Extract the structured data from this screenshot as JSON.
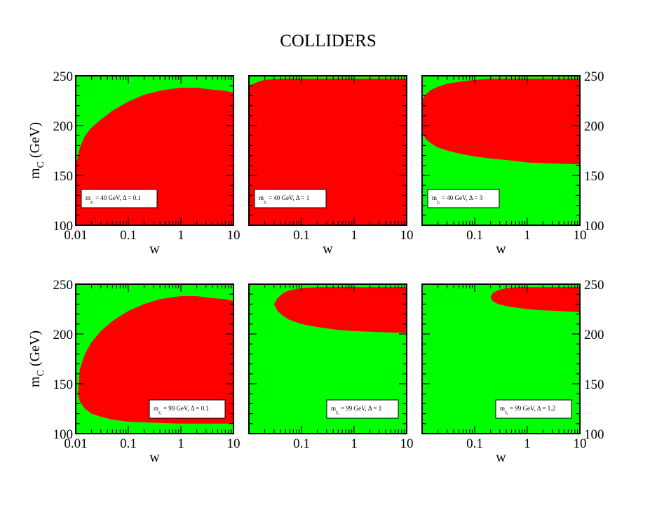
{
  "title": "COLLIDERS",
  "colors": {
    "allowed": "#00ff00",
    "excluded": "#ff0000",
    "frame": "#000000"
  },
  "chart_data": {
    "type": "heatmap",
    "title": "COLLIDERS",
    "xlabel": "w",
    "ylabel": "m_C (GeV)",
    "xscale": "log",
    "xlim": [
      0.01,
      10
    ],
    "ylim": [
      100,
      250
    ],
    "x_ticks": [
      0.01,
      0.1,
      1,
      10
    ],
    "y_ticks": [
      100,
      150,
      200,
      250
    ],
    "regions": {
      "green": "allowed",
      "red": "excluded"
    },
    "panels": [
      {
        "row": 1,
        "col": 1,
        "legend": {
          "m_label": "m",
          "sub": "χ",
          "subsub": "1",
          "value": " = 40 GeV,  Δ = 0.1"
        },
        "x_tick_labels": [
          "0.01",
          "0.1",
          "1",
          "10"
        ],
        "y_tick_labels": [
          "100",
          "150",
          "200",
          "250"
        ],
        "show_xlabel": true,
        "show_ylabel": true,
        "y_axis_side": "left",
        "legend_pos": "mid-left",
        "red_region": {
          "top": [
            [
              0.01,
              160
            ],
            [
              0.012,
              178
            ],
            [
              0.015,
              190
            ],
            [
              0.02,
              198
            ],
            [
              0.03,
              206
            ],
            [
              0.05,
              215
            ],
            [
              0.1,
              224
            ],
            [
              0.2,
              231
            ],
            [
              0.4,
              235
            ],
            [
              0.7,
              237
            ],
            [
              1,
              238
            ],
            [
              2,
              238
            ],
            [
              4,
              236
            ],
            [
              7,
              235
            ],
            [
              10,
              233
            ]
          ],
          "bottom": [
            [
              0.01,
              100
            ],
            [
              10,
              100
            ]
          ]
        }
      },
      {
        "row": 1,
        "col": 2,
        "legend": {
          "m_label": "m",
          "sub": "χ",
          "subsub": "1",
          "value": " = 40 GeV,  Δ = 1"
        },
        "x_tick_labels": [
          "",
          "0.1",
          "1",
          "10"
        ],
        "y_tick_labels": [],
        "show_xlabel": true,
        "show_ylabel": false,
        "y_axis_side": "none",
        "legend_pos": "mid-left",
        "red_region": {
          "top": [
            [
              0.01,
              240
            ],
            [
              0.015,
              244
            ],
            [
              0.02,
              246
            ],
            [
              0.05,
              247
            ],
            [
              0.2,
              247
            ],
            [
              1,
              247
            ],
            [
              10,
              247
            ]
          ],
          "bottom": [
            [
              0.01,
              100
            ],
            [
              10,
              100
            ]
          ]
        }
      },
      {
        "row": 1,
        "col": 3,
        "legend": {
          "m_label": "m",
          "sub": "χ",
          "subsub": "1",
          "value": " = 40 GeV,  Δ = 3"
        },
        "x_tick_labels": [
          "",
          "0.1",
          "1",
          "10"
        ],
        "y_tick_labels": [
          "100",
          "150",
          "200",
          "250"
        ],
        "show_xlabel": true,
        "show_ylabel": false,
        "y_axis_side": "right",
        "legend_pos": "mid-left",
        "red_region": {
          "top": [
            [
              0.01,
              226
            ],
            [
              0.012,
              232
            ],
            [
              0.015,
              236
            ],
            [
              0.02,
              239
            ],
            [
              0.03,
              242
            ],
            [
              0.05,
              244
            ],
            [
              0.1,
              246
            ],
            [
              0.2,
              247
            ],
            [
              1,
              247
            ],
            [
              10,
              247
            ]
          ],
          "bottom": [
            [
              0.01,
              193
            ],
            [
              0.012,
              186
            ],
            [
              0.015,
              182
            ],
            [
              0.02,
              178
            ],
            [
              0.03,
              175
            ],
            [
              0.05,
              172
            ],
            [
              0.1,
              169
            ],
            [
              0.2,
              167
            ],
            [
              0.5,
              165
            ],
            [
              1,
              163
            ],
            [
              3,
              162
            ],
            [
              10,
              161
            ]
          ]
        }
      },
      {
        "row": 2,
        "col": 1,
        "legend": {
          "m_label": "m",
          "sub": "χ",
          "subsub": "1",
          "value": " = 99 GeV,  Δ = 0.1"
        },
        "x_tick_labels": [
          "0.01",
          "0.1",
          "1",
          "10"
        ],
        "y_tick_labels": [
          "100",
          "150",
          "200",
          "250"
        ],
        "show_xlabel": true,
        "show_ylabel": true,
        "y_axis_side": "left",
        "legend_pos": "bottom-right",
        "red_region": {
          "top": [
            [
              0.011,
              140
            ],
            [
              0.012,
              165
            ],
            [
              0.015,
              180
            ],
            [
              0.02,
              192
            ],
            [
              0.03,
              203
            ],
            [
              0.05,
              213
            ],
            [
              0.1,
              223
            ],
            [
              0.2,
              230
            ],
            [
              0.4,
              235
            ],
            [
              0.7,
              237
            ],
            [
              1,
              238
            ],
            [
              2,
              238
            ],
            [
              4,
              236
            ],
            [
              7,
              235
            ],
            [
              10,
              233
            ]
          ],
          "bottom": [
            [
              0.011,
              140
            ],
            [
              0.012,
              132
            ],
            [
              0.015,
              125
            ],
            [
              0.02,
              120
            ],
            [
              0.03,
              117
            ],
            [
              0.05,
              114
            ],
            [
              0.1,
              112
            ],
            [
              0.3,
              111
            ],
            [
              1,
              110
            ],
            [
              10,
              110
            ]
          ]
        }
      },
      {
        "row": 2,
        "col": 2,
        "legend": {
          "m_label": "m",
          "sub": "χ",
          "subsub": "1",
          "value": " = 99 GeV,  Δ = 1"
        },
        "x_tick_labels": [
          "",
          "0.1",
          "1",
          "10"
        ],
        "y_tick_labels": [],
        "show_xlabel": false,
        "show_ylabel": false,
        "y_axis_side": "none",
        "legend_pos": "bottom-right",
        "red_region": {
          "top": [
            [
              0.03,
              230
            ],
            [
              0.035,
              236
            ],
            [
              0.045,
              241
            ],
            [
              0.06,
              244
            ],
            [
              0.1,
              246
            ],
            [
              0.2,
              247
            ],
            [
              1,
              247
            ],
            [
              10,
              247
            ]
          ],
          "bottom": [
            [
              0.03,
              230
            ],
            [
              0.035,
              223
            ],
            [
              0.045,
              218
            ],
            [
              0.06,
              214
            ],
            [
              0.1,
              210
            ],
            [
              0.2,
              207
            ],
            [
              0.5,
              204
            ],
            [
              1,
              203
            ],
            [
              3,
              202
            ],
            [
              10,
              201
            ]
          ]
        }
      },
      {
        "row": 2,
        "col": 3,
        "legend": {
          "m_label": "m",
          "sub": "χ",
          "subsub": "1",
          "value": " = 99 GeV,  Δ = 1.2"
        },
        "x_tick_labels": [
          "",
          "0.1",
          "1",
          "10"
        ],
        "y_tick_labels": [
          "100",
          "150",
          "200",
          "250"
        ],
        "show_xlabel": true,
        "show_ylabel": false,
        "y_axis_side": "right",
        "legend_pos": "bottom-right",
        "red_region": {
          "top": [
            [
              0.2,
              237
            ],
            [
              0.22,
              241
            ],
            [
              0.28,
              244
            ],
            [
              0.4,
              246
            ],
            [
              0.7,
              247
            ],
            [
              2,
              247
            ],
            [
              10,
              247
            ]
          ],
          "bottom": [
            [
              0.2,
              237
            ],
            [
              0.22,
              233
            ],
            [
              0.28,
              230
            ],
            [
              0.4,
              228
            ],
            [
              0.7,
              226
            ],
            [
              1.5,
              224
            ],
            [
              4,
              223
            ],
            [
              10,
              222
            ]
          ]
        }
      }
    ]
  }
}
